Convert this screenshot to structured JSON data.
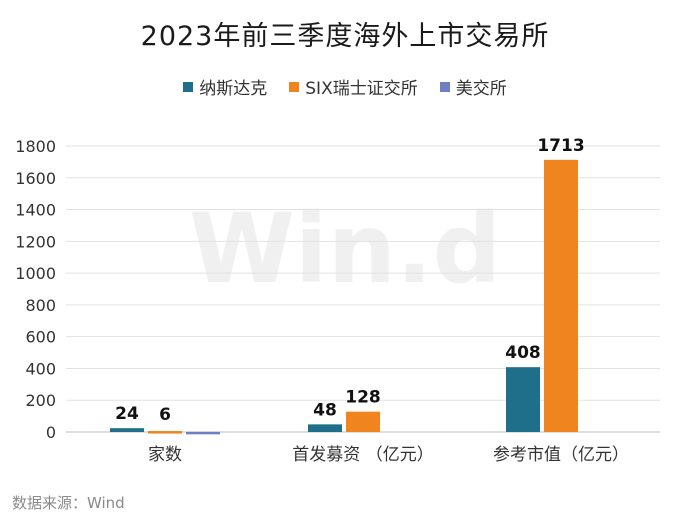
{
  "chart_data": {
    "type": "bar",
    "title": "2023年前三季度海外上市交易所",
    "categories": [
      "家数",
      "首发募资 （亿元）",
      "参考市值（亿元）"
    ],
    "series": [
      {
        "name": "纳斯达克",
        "color": "#1f6f8b",
        "values": [
          24,
          48,
          408
        ],
        "labels": [
          "24",
          "48",
          "408"
        ]
      },
      {
        "name": "SIX瑞士证交所",
        "color": "#f0841f",
        "values": [
          6,
          128,
          1713
        ],
        "labels": [
          "6",
          "128",
          "1713"
        ]
      },
      {
        "name": "美交所",
        "color": "#6f7fbf",
        "values": [
          1,
          0,
          0
        ],
        "labels": [
          "",
          "",
          ""
        ]
      }
    ],
    "ylim": [
      0,
      1800
    ],
    "yticks": [
      0,
      200,
      400,
      600,
      800,
      1000,
      1200,
      1400,
      1600,
      1800
    ],
    "grid": true,
    "legend_position": "top"
  },
  "watermark": "Win.d",
  "source": "数据来源：Wind"
}
